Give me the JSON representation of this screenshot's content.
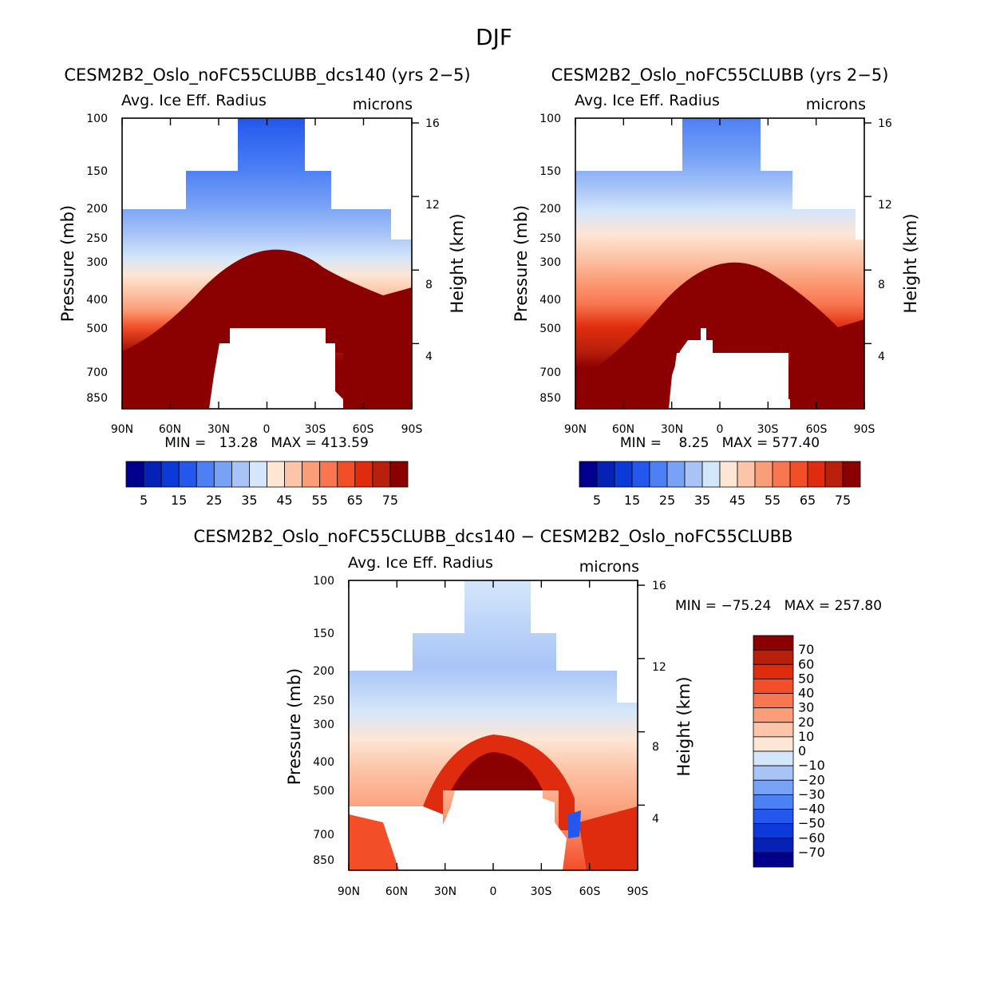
{
  "figure_title": "DJF",
  "chart_data": [
    {
      "type": "heatmap",
      "title": "CESM2B2_Oslo_noFC55CLUBB_dcs140 (yrs 2−5)",
      "variable": "Avg. Ice Eff. Radius",
      "units": "microns",
      "ylabel": "Pressure (mb)",
      "ylabel_right": "Height (km)",
      "x_ticks": [
        "90N",
        "60N",
        "30N",
        "0",
        "30S",
        "60S",
        "90S"
      ],
      "y_ticks": [
        "100",
        "150",
        "200",
        "250",
        "300",
        "300",
        "400",
        "500",
        "500",
        "700",
        "850"
      ],
      "height_ticks": [
        "16",
        "12",
        "8",
        "4"
      ],
      "min_max": "MIN =   13.28   MAX = 413.59",
      "min": 13.28,
      "max": 413.59,
      "colorbar_labels": [
        "5",
        "15",
        "25",
        "35",
        "45",
        "55",
        "65",
        "75"
      ],
      "colorbar_colors": [
        "#00008c",
        "#0622b4",
        "#0b3ad9",
        "#2357ee",
        "#4d80f5",
        "#78a2f6",
        "#a8c4f7",
        "#d4e6fa",
        "#fde6d4",
        "#fcc4a8",
        "#fb9d78",
        "#f87650",
        "#f24e28",
        "#e02c0e",
        "#b8200c",
        "#8b0000"
      ]
    },
    {
      "type": "heatmap",
      "title": "CESM2B2_Oslo_noFC55CLUBB (yrs 2−5)",
      "variable": "Avg. Ice Eff. Radius",
      "units": "microns",
      "ylabel": "Pressure (mb)",
      "ylabel_right": "Height (km)",
      "x_ticks": [
        "90N",
        "60N",
        "30N",
        "0",
        "30S",
        "60S",
        "90S"
      ],
      "y_ticks": [
        "100",
        "150",
        "200",
        "250",
        "300",
        "300",
        "400",
        "500",
        "500",
        "700",
        "850"
      ],
      "height_ticks": [
        "16",
        "12",
        "8",
        "4"
      ],
      "min_max": "MIN =    8.25   MAX = 577.40",
      "min": 8.25,
      "max": 577.4,
      "colorbar_labels": [
        "5",
        "15",
        "25",
        "35",
        "45",
        "55",
        "65",
        "75"
      ],
      "colorbar_colors": [
        "#00008c",
        "#0622b4",
        "#0b3ad9",
        "#2357ee",
        "#4d80f5",
        "#78a2f6",
        "#a8c4f7",
        "#d4e6fa",
        "#fde6d4",
        "#fcc4a8",
        "#fb9d78",
        "#f87650",
        "#f24e28",
        "#e02c0e",
        "#b8200c",
        "#8b0000"
      ]
    },
    {
      "type": "heatmap",
      "title": "CESM2B2_Oslo_noFC55CLUBB_dcs140 − CESM2B2_Oslo_noFC55CLUBB",
      "variable": "Avg. Ice Eff. Radius",
      "units": "microns",
      "ylabel": "Pressure (mb)",
      "ylabel_right": "Height (km)",
      "x_ticks": [
        "90N",
        "60N",
        "30N",
        "0",
        "30S",
        "60S",
        "90S"
      ],
      "y_ticks": [
        "100",
        "150",
        "200",
        "250",
        "300",
        "400",
        "500",
        "700",
        "850"
      ],
      "height_ticks": [
        "16",
        "12",
        "8",
        "4"
      ],
      "min_max": "MIN = −75.24   MAX = 257.80",
      "min": -75.24,
      "max": 257.8,
      "colorbar_labels": [
        "70",
        "60",
        "50",
        "40",
        "30",
        "20",
        "10",
        "0",
        "−10",
        "−20",
        "−30",
        "−40",
        "−50",
        "−60",
        "−70"
      ],
      "colorbar_colors": [
        "#8b0000",
        "#b8200c",
        "#e02c0e",
        "#f24e28",
        "#f87650",
        "#fb9d78",
        "#fcc4a8",
        "#fde6d4",
        "#d4e6fa",
        "#a8c4f7",
        "#78a2f6",
        "#4d80f5",
        "#2357ee",
        "#0b3ad9",
        "#0622b4",
        "#00008c"
      ]
    }
  ]
}
